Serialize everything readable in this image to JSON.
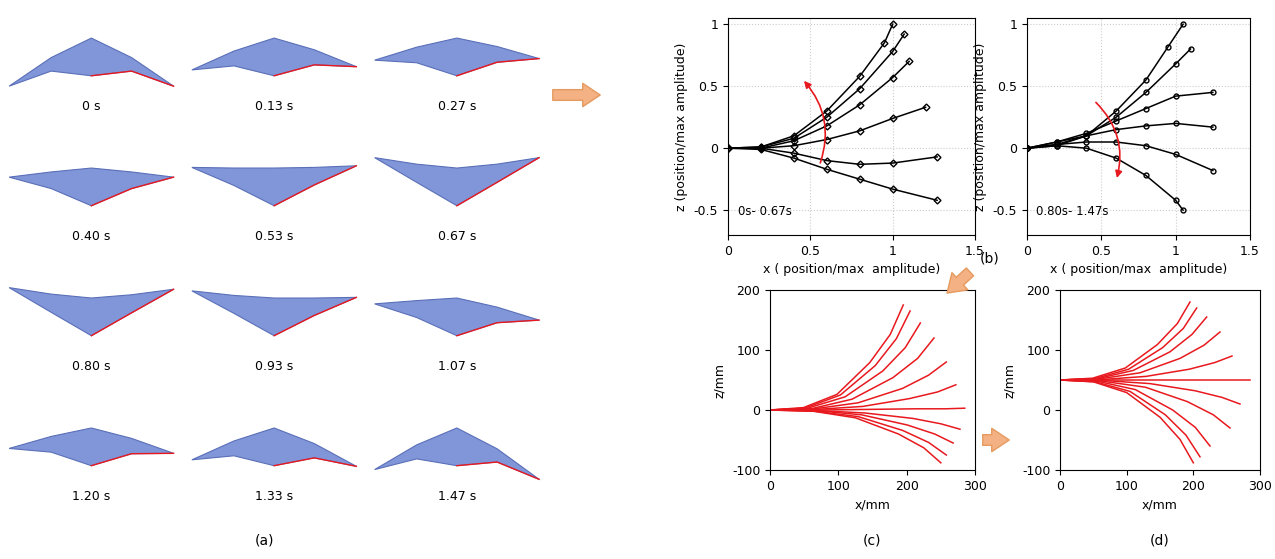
{
  "panel_a": {
    "caption": "(a)",
    "frames": [
      "0 s",
      "0.13 s",
      "0.27 s",
      "0.40 s",
      "0.53 s",
      "0.67 s",
      "0.80 s",
      "0.93 s",
      "1.07 s",
      "1.20 s",
      "1.33 s",
      "1.47 s"
    ]
  },
  "chart_data": [
    {
      "type": "line",
      "caption": "(b)",
      "annotation": "0s- 0.67s",
      "x_label": "x ( position/max  amplitude)",
      "y_label": "z (position/max amplitude)",
      "xlim": [
        0,
        1.5
      ],
      "ylim": [
        -0.7,
        1.05
      ],
      "xticks": [
        0,
        0.5,
        1,
        1.5
      ],
      "yticks": [
        -0.5,
        0,
        0.5,
        1
      ],
      "grid": true,
      "color": "#000000",
      "marker": "diamond",
      "line_style": "solid",
      "series": [
        {
          "x": [
            0,
            0.2,
            0.4,
            0.6,
            0.8,
            0.95,
            1.0
          ],
          "values": [
            0,
            0.01,
            0.1,
            0.3,
            0.58,
            0.85,
            1.0
          ]
        },
        {
          "x": [
            0,
            0.2,
            0.4,
            0.6,
            0.8,
            1.0,
            1.07
          ],
          "values": [
            0,
            0.01,
            0.08,
            0.25,
            0.48,
            0.78,
            0.92
          ]
        },
        {
          "x": [
            0,
            0.2,
            0.4,
            0.6,
            0.8,
            1.0,
            1.1
          ],
          "values": [
            0,
            0.0,
            0.06,
            0.18,
            0.35,
            0.57,
            0.7
          ]
        },
        {
          "x": [
            0,
            0.2,
            0.4,
            0.6,
            0.8,
            1.0,
            1.2
          ],
          "values": [
            0,
            0,
            0.02,
            0.07,
            0.14,
            0.24,
            0.33
          ]
        },
        {
          "x": [
            0,
            0.2,
            0.4,
            0.6,
            0.8,
            1.0,
            1.27
          ],
          "values": [
            0,
            0,
            -0.04,
            -0.1,
            -0.13,
            -0.12,
            -0.07
          ]
        },
        {
          "x": [
            0,
            0.2,
            0.4,
            0.6,
            0.8,
            1.0,
            1.27
          ],
          "values": [
            0,
            -0.01,
            -0.08,
            -0.17,
            -0.25,
            -0.33,
            -0.42
          ]
        }
      ]
    },
    {
      "type": "line",
      "annotation": "0.80s- 1.47s",
      "x_label": "x ( position/max  amplitude)",
      "y_label": "z (position/max amplitude)",
      "xlim": [
        0,
        1.5
      ],
      "ylim": [
        -0.7,
        1.05
      ],
      "xticks": [
        0,
        0.5,
        1,
        1.5
      ],
      "yticks": [
        -0.5,
        0,
        0.5,
        1
      ],
      "grid": true,
      "color": "#000000",
      "marker": "circle",
      "line_style": "solid",
      "series": [
        {
          "x": [
            0,
            0.2,
            0.4,
            0.6,
            0.8,
            0.95,
            1.05
          ],
          "values": [
            0,
            0.02,
            0.1,
            0.3,
            0.55,
            0.82,
            1.0
          ]
        },
        {
          "x": [
            0,
            0.2,
            0.4,
            0.6,
            0.8,
            1.0,
            1.1
          ],
          "values": [
            0,
            0.03,
            0.1,
            0.25,
            0.45,
            0.68,
            0.8
          ]
        },
        {
          "x": [
            0,
            0.2,
            0.4,
            0.6,
            0.8,
            1.0,
            1.25
          ],
          "values": [
            0,
            0.05,
            0.12,
            0.22,
            0.32,
            0.42,
            0.45
          ]
        },
        {
          "x": [
            0,
            0.2,
            0.4,
            0.6,
            0.8,
            1.0,
            1.25
          ],
          "values": [
            0,
            0.05,
            0.1,
            0.15,
            0.18,
            0.2,
            0.17
          ]
        },
        {
          "x": [
            0,
            0.2,
            0.4,
            0.6,
            0.8,
            1.0,
            1.25
          ],
          "values": [
            0,
            0.03,
            0.05,
            0.05,
            0.02,
            -0.05,
            -0.18
          ]
        },
        {
          "x": [
            0,
            0.2,
            0.4,
            0.6,
            0.8,
            1.0,
            1.05
          ],
          "values": [
            0,
            0.02,
            0,
            -0.08,
            -0.22,
            -0.42,
            -0.5
          ]
        }
      ]
    },
    {
      "type": "line",
      "caption": "(c)",
      "x_label": "x/mm",
      "y_label": "z/mm",
      "xlim": [
        0,
        300
      ],
      "ylim": [
        -100,
        200
      ],
      "xticks": [
        0,
        100,
        200,
        300
      ],
      "yticks": [
        -100,
        0,
        100,
        200
      ],
      "grid": false,
      "color": "#e8191e",
      "line_style": "solid",
      "series": [
        {
          "x": [
            0,
            49,
            98,
            146,
            176,
            195
          ],
          "values": [
            0,
            4,
            26,
            79,
            126,
            175
          ]
        },
        {
          "x": [
            0,
            51,
            103,
            154,
            185,
            205
          ],
          "values": [
            0,
            3,
            25,
            74,
            119,
            165
          ]
        },
        {
          "x": [
            0,
            55,
            110,
            165,
            198,
            220
          ],
          "values": [
            0,
            3,
            22,
            65,
            104,
            145
          ]
        },
        {
          "x": [
            0,
            60,
            120,
            180,
            216,
            240
          ],
          "values": [
            0,
            2,
            18,
            54,
            86,
            120
          ]
        },
        {
          "x": [
            0,
            65,
            129,
            194,
            232,
            258
          ],
          "values": [
            0,
            2,
            12,
            36,
            58,
            80
          ]
        },
        {
          "x": [
            0,
            68,
            136,
            204,
            245,
            272
          ],
          "values": [
            0,
            1,
            6,
            19,
            30,
            42
          ]
        },
        {
          "x": [
            0,
            71,
            143,
            214,
            257,
            285
          ],
          "values": [
            0,
            0,
            1,
            2,
            2,
            3
          ]
        },
        {
          "x": [
            0,
            70,
            139,
            209,
            250,
            278
          ],
          "values": [
            0,
            -1,
            -5,
            -14,
            -23,
            -32
          ]
        },
        {
          "x": [
            0,
            67,
            134,
            201,
            241,
            268
          ],
          "values": [
            0,
            -1,
            -8,
            -25,
            -40,
            -55
          ]
        },
        {
          "x": [
            0,
            65,
            129,
            194,
            232,
            258
          ],
          "values": [
            0,
            -2,
            -11,
            -34,
            -54,
            -75
          ]
        },
        {
          "x": [
            0,
            63,
            125,
            188,
            225,
            250
          ],
          "values": [
            0,
            -2,
            -13,
            -40,
            -63,
            -88
          ]
        }
      ]
    },
    {
      "type": "line",
      "caption": "(d)",
      "x_label": "x/mm",
      "y_label": "z/mm",
      "xlim": [
        0,
        300
      ],
      "ylim": [
        -100,
        200
      ],
      "xticks": [
        0,
        100,
        200,
        300
      ],
      "yticks": [
        -100,
        0,
        100,
        200
      ],
      "grid": false,
      "color": "#e8191e",
      "line_style": "solid",
      "series": [
        {
          "x": [
            0,
            49,
            98,
            146,
            176,
            195
          ],
          "values": [
            50,
            53,
            70,
            109,
            144,
            180
          ]
        },
        {
          "x": [
            0,
            51,
            103,
            154,
            185,
            205
          ],
          "values": [
            50,
            52,
            68,
            104,
            136,
            170
          ]
        },
        {
          "x": [
            0,
            55,
            110,
            165,
            198,
            220
          ],
          "values": [
            50,
            52,
            66,
            97,
            126,
            155
          ]
        },
        {
          "x": [
            0,
            60,
            120,
            180,
            216,
            240
          ],
          "values": [
            50,
            52,
            62,
            86,
            108,
            130
          ]
        },
        {
          "x": [
            0,
            65,
            129,
            194,
            232,
            258
          ],
          "values": [
            50,
            51,
            56,
            68,
            79,
            90
          ]
        },
        {
          "x": [
            0,
            71,
            143,
            214,
            257,
            285
          ],
          "values": [
            50,
            50,
            50,
            50,
            50,
            50
          ]
        },
        {
          "x": [
            0,
            68,
            135,
            203,
            243,
            270
          ],
          "values": [
            50,
            49,
            44,
            32,
            21,
            10
          ]
        },
        {
          "x": [
            0,
            64,
            128,
            191,
            230,
            255
          ],
          "values": [
            50,
            48,
            38,
            14,
            -8,
            -30
          ]
        },
        {
          "x": [
            0,
            56,
            113,
            169,
            203,
            225
          ],
          "values": [
            50,
            48,
            34,
            0,
            -29,
            -60
          ]
        },
        {
          "x": [
            0,
            53,
            105,
            158,
            189,
            210
          ],
          "values": [
            50,
            47,
            31,
            -8,
            -42,
            -78
          ]
        },
        {
          "x": [
            0,
            50,
            100,
            150,
            180,
            200
          ],
          "values": [
            50,
            47,
            29,
            -12,
            -49,
            -88
          ]
        }
      ]
    }
  ]
}
